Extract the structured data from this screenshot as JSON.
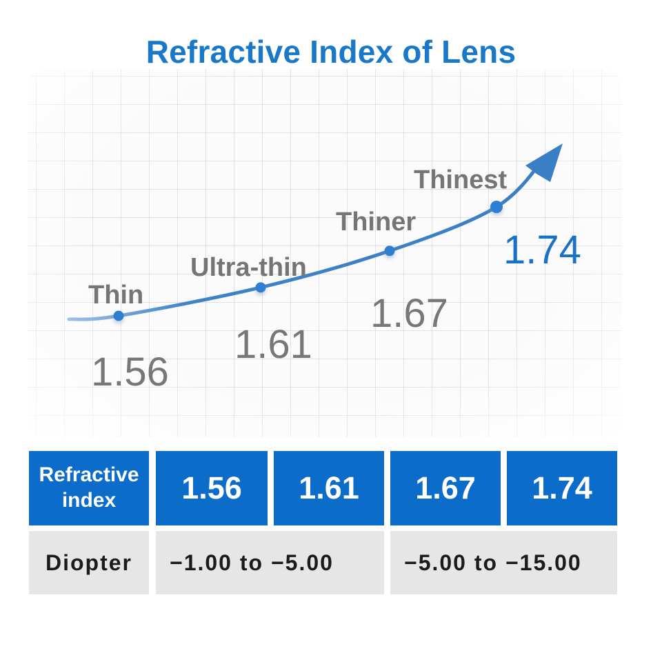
{
  "title": "Refractive Index of Lens",
  "colors": {
    "accent": "#1a78c8",
    "cell_blue": "#0c6cc9",
    "cell_grey": "#e6e6e6",
    "curve": "#3a7fc4"
  },
  "chart_data": {
    "type": "line",
    "categories": [
      "Thin",
      "Ultra-thin",
      "Thiner",
      "Thinest"
    ],
    "values": [
      1.56,
      1.61,
      1.67,
      1.74
    ],
    "value_labels": [
      "1.56",
      "1.61",
      "1.67",
      "1.74"
    ],
    "highlight_index": 3,
    "grid": true,
    "arrow": true
  },
  "table": {
    "row1": {
      "header": "Refractive index",
      "values": [
        "1.56",
        "1.61",
        "1.67",
        "1.74"
      ]
    },
    "row2": {
      "header": "Diopter",
      "ranges": [
        "−1.00 to −5.00",
        "−5.00 to −15.00"
      ]
    }
  }
}
